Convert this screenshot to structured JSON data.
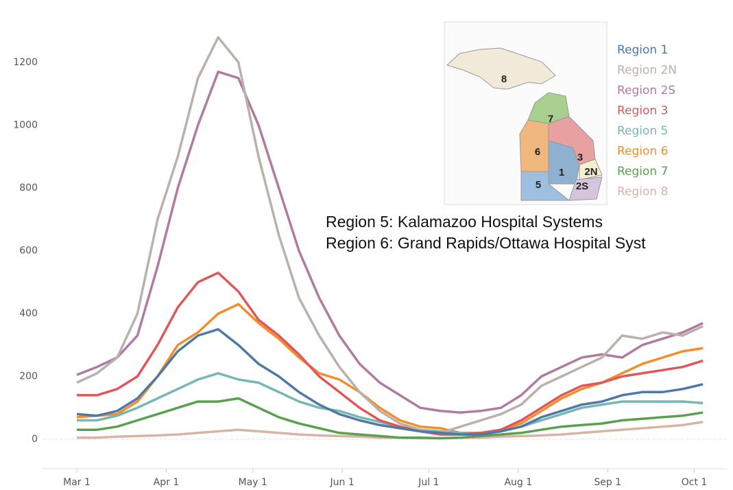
{
  "chart_data": {
    "type": "line",
    "x": [
      0,
      7,
      14,
      21,
      28,
      35,
      42,
      49,
      56,
      63,
      70,
      77,
      84,
      91,
      98,
      105,
      112,
      119,
      126,
      133,
      140,
      147,
      154,
      161,
      168,
      175,
      182,
      189,
      196,
      203,
      210,
      217
    ],
    "xlim": [
      0,
      221
    ],
    "xticks": [
      {
        "value": 0,
        "label": "Mar 1"
      },
      {
        "value": 31,
        "label": "Apr 1"
      },
      {
        "value": 61,
        "label": "May 1"
      },
      {
        "value": 92,
        "label": "Jun 1"
      },
      {
        "value": 122,
        "label": "Jul 1"
      },
      {
        "value": 153,
        "label": "Aug 1"
      },
      {
        "value": 184,
        "label": "Sep 1"
      },
      {
        "value": 214,
        "label": "Oct 1"
      }
    ],
    "ylim": [
      -70,
      1355
    ],
    "yticks": [
      0,
      200,
      400,
      600,
      800,
      1000,
      1200
    ],
    "series": [
      {
        "name": "Region 1",
        "color": "#4e79a7",
        "values": [
          80,
          75,
          90,
          130,
          200,
          280,
          330,
          350,
          300,
          240,
          200,
          150,
          110,
          80,
          60,
          45,
          35,
          25,
          20,
          15,
          15,
          25,
          40,
          70,
          90,
          110,
          120,
          140,
          150,
          150,
          160,
          175
        ]
      },
      {
        "name": "Region 2N",
        "color": "#bab0ac",
        "values": [
          180,
          210,
          260,
          400,
          700,
          900,
          1150,
          1280,
          1200,
          900,
          650,
          450,
          330,
          230,
          150,
          90,
          50,
          30,
          20,
          40,
          60,
          80,
          110,
          170,
          200,
          230,
          260,
          330,
          320,
          340,
          330,
          360
        ]
      },
      {
        "name": "Region 2S",
        "color": "#b07aa1",
        "values": [
          205,
          230,
          260,
          330,
          550,
          800,
          1000,
          1170,
          1150,
          1000,
          800,
          600,
          450,
          330,
          240,
          180,
          140,
          100,
          90,
          85,
          90,
          100,
          140,
          200,
          230,
          260,
          270,
          260,
          300,
          320,
          340,
          370
        ]
      },
      {
        "name": "Region 3",
        "color": "#e15759",
        "values": [
          140,
          140,
          160,
          200,
          300,
          420,
          500,
          530,
          470,
          380,
          330,
          270,
          200,
          150,
          100,
          60,
          40,
          25,
          15,
          15,
          20,
          30,
          60,
          100,
          140,
          170,
          180,
          200,
          210,
          220,
          230,
          250
        ]
      },
      {
        "name": "Region 5",
        "color": "#76b7b2",
        "values": [
          60,
          60,
          75,
          100,
          130,
          160,
          190,
          210,
          190,
          180,
          150,
          120,
          100,
          90,
          70,
          55,
          40,
          30,
          25,
          20,
          20,
          25,
          40,
          60,
          80,
          100,
          110,
          120,
          120,
          120,
          120,
          115
        ]
      },
      {
        "name": "Region 6",
        "color": "#f28e2b",
        "values": [
          70,
          75,
          80,
          120,
          200,
          300,
          340,
          400,
          430,
          370,
          320,
          260,
          210,
          190,
          150,
          100,
          60,
          40,
          35,
          20,
          20,
          30,
          50,
          90,
          130,
          160,
          180,
          210,
          240,
          260,
          280,
          290
        ]
      },
      {
        "name": "Region 7",
        "color": "#59a14f",
        "values": [
          30,
          30,
          40,
          60,
          80,
          100,
          120,
          120,
          130,
          100,
          70,
          50,
          35,
          20,
          15,
          10,
          5,
          5,
          3,
          5,
          10,
          15,
          20,
          30,
          40,
          45,
          50,
          60,
          65,
          70,
          75,
          85
        ]
      },
      {
        "name": "Region 8",
        "color": "#d7b5a6",
        "values": [
          5,
          5,
          8,
          10,
          12,
          15,
          20,
          25,
          30,
          25,
          20,
          15,
          12,
          10,
          8,
          5,
          5,
          3,
          3,
          5,
          5,
          8,
          10,
          12,
          15,
          20,
          25,
          30,
          35,
          40,
          45,
          55
        ]
      }
    ],
    "annotations": [
      "Region 5: Kalamazoo Hospital Systems",
      "Region 6: Grand Rapids/Ottawa Hospital Syst"
    ]
  },
  "map": {
    "labels": [
      "8",
      "7",
      "6",
      "3",
      "1",
      "2N",
      "5",
      "2S"
    ]
  }
}
